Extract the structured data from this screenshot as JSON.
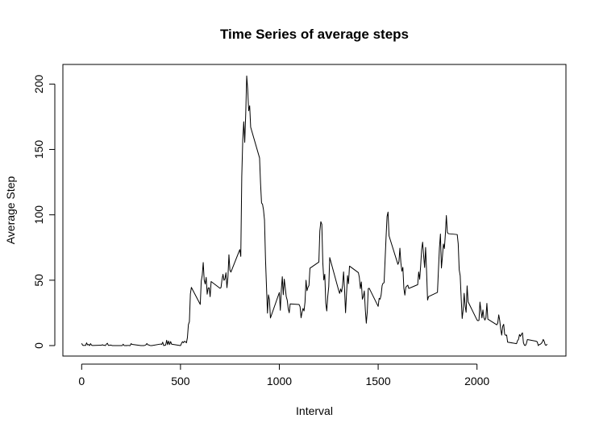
{
  "chart_data": {
    "type": "line",
    "title": "Time Series of average steps",
    "xlabel": "Interval",
    "ylabel": "Average Step",
    "xlim": [
      -95,
      2450
    ],
    "ylim": [
      -8,
      215
    ],
    "xticks": [
      0,
      500,
      1000,
      1500,
      2000
    ],
    "yticks": [
      0,
      50,
      100,
      150,
      200
    ],
    "grid": false,
    "series": [
      {
        "points": [
          [
            0,
            1.7
          ],
          [
            5,
            0.3
          ],
          [
            10,
            0.1
          ],
          [
            15,
            0.2
          ],
          [
            20,
            0.1
          ],
          [
            25,
            2.1
          ],
          [
            30,
            0.5
          ],
          [
            35,
            0.9
          ],
          [
            40,
            0
          ],
          [
            45,
            1.5
          ],
          [
            50,
            0.3
          ],
          [
            55,
            0.1
          ],
          [
            100,
            0.3
          ],
          [
            105,
            0.7
          ],
          [
            110,
            0.2
          ],
          [
            115,
            0.3
          ],
          [
            120,
            0
          ],
          [
            125,
            1.1
          ],
          [
            130,
            1.8
          ],
          [
            135,
            0.2
          ],
          [
            140,
            0.2
          ],
          [
            145,
            0.4
          ],
          [
            150,
            0.3
          ],
          [
            155,
            0
          ],
          [
            200,
            0
          ],
          [
            205,
            0
          ],
          [
            210,
            1.1
          ],
          [
            215,
            0
          ],
          [
            220,
            0
          ],
          [
            225,
            0.1
          ],
          [
            230,
            0
          ],
          [
            235,
            0.2
          ],
          [
            240,
            0
          ],
          [
            245,
            0
          ],
          [
            250,
            1.5
          ],
          [
            255,
            0.9
          ],
          [
            300,
            0
          ],
          [
            305,
            0
          ],
          [
            310,
            0
          ],
          [
            315,
            0
          ],
          [
            320,
            0.2
          ],
          [
            325,
            0.6
          ],
          [
            330,
            1.6
          ],
          [
            335,
            0.6
          ],
          [
            340,
            0.5
          ],
          [
            345,
            0.1
          ],
          [
            350,
            0
          ],
          [
            355,
            0
          ],
          [
            400,
            1.2
          ],
          [
            405,
            0.9
          ],
          [
            410,
            2.6
          ],
          [
            415,
            0
          ],
          [
            420,
            0.3
          ],
          [
            425,
            0.4
          ],
          [
            430,
            4.1
          ],
          [
            435,
            0.7
          ],
          [
            440,
            3.5
          ],
          [
            445,
            0.8
          ],
          [
            450,
            3.1
          ],
          [
            455,
            1.1
          ],
          [
            500,
            0
          ],
          [
            505,
            1.6
          ],
          [
            510,
            3
          ],
          [
            515,
            2.2
          ],
          [
            520,
            3.3
          ],
          [
            525,
            3
          ],
          [
            530,
            2.1
          ],
          [
            535,
            6.1
          ],
          [
            540,
            16
          ],
          [
            545,
            18.3
          ],
          [
            550,
            39.5
          ],
          [
            555,
            44.5
          ],
          [
            600,
            31.5
          ],
          [
            605,
            49.3
          ],
          [
            610,
            53.8
          ],
          [
            615,
            63.5
          ],
          [
            620,
            50
          ],
          [
            625,
            47.1
          ],
          [
            630,
            52.2
          ],
          [
            635,
            39.3
          ],
          [
            640,
            44
          ],
          [
            645,
            44.2
          ],
          [
            650,
            37.4
          ],
          [
            655,
            49
          ],
          [
            700,
            43.8
          ],
          [
            705,
            44.4
          ],
          [
            710,
            50.5
          ],
          [
            715,
            54.5
          ],
          [
            720,
            49.9
          ],
          [
            725,
            51
          ],
          [
            730,
            55.7
          ],
          [
            735,
            44.3
          ],
          [
            740,
            52.3
          ],
          [
            745,
            69.5
          ],
          [
            750,
            57.8
          ],
          [
            755,
            56.2
          ],
          [
            800,
            73.4
          ],
          [
            805,
            68.2
          ],
          [
            810,
            129.4
          ],
          [
            815,
            157.5
          ],
          [
            820,
            171.2
          ],
          [
            825,
            155.4
          ],
          [
            830,
            177.3
          ],
          [
            835,
            206.2
          ],
          [
            840,
            195.9
          ],
          [
            845,
            179.6
          ],
          [
            850,
            183.4
          ],
          [
            855,
            167
          ],
          [
            900,
            143.5
          ],
          [
            905,
            124
          ],
          [
            910,
            109.1
          ],
          [
            915,
            108.1
          ],
          [
            920,
            103.7
          ],
          [
            925,
            95.9
          ],
          [
            930,
            66.2
          ],
          [
            935,
            45.2
          ],
          [
            940,
            24.8
          ],
          [
            945,
            38.8
          ],
          [
            950,
            35
          ],
          [
            955,
            21.1
          ],
          [
            1000,
            40.6
          ],
          [
            1005,
            27
          ],
          [
            1010,
            42.4
          ],
          [
            1015,
            52.7
          ],
          [
            1020,
            38.9
          ],
          [
            1025,
            50.8
          ],
          [
            1030,
            44.3
          ],
          [
            1035,
            37.4
          ],
          [
            1040,
            34.7
          ],
          [
            1045,
            28.3
          ],
          [
            1050,
            25.1
          ],
          [
            1055,
            31.9
          ],
          [
            1100,
            31.4
          ],
          [
            1105,
            29.7
          ],
          [
            1110,
            21.3
          ],
          [
            1115,
            25.5
          ],
          [
            1120,
            28.4
          ],
          [
            1125,
            26.5
          ],
          [
            1130,
            33.4
          ],
          [
            1135,
            49.98
          ],
          [
            1140,
            42
          ],
          [
            1145,
            44.6
          ],
          [
            1150,
            46
          ],
          [
            1155,
            59.2
          ],
          [
            1200,
            63.9
          ],
          [
            1205,
            87.7
          ],
          [
            1210,
            94.8
          ],
          [
            1215,
            92.8
          ],
          [
            1220,
            63.4
          ],
          [
            1225,
            50.2
          ],
          [
            1230,
            54.5
          ],
          [
            1235,
            32.4
          ],
          [
            1240,
            26.5
          ],
          [
            1245,
            37.7
          ],
          [
            1250,
            45.1
          ],
          [
            1255,
            67.3
          ],
          [
            1300,
            42.3
          ],
          [
            1305,
            39.9
          ],
          [
            1310,
            43.3
          ],
          [
            1315,
            40.98
          ],
          [
            1320,
            46.2
          ],
          [
            1325,
            56.4
          ],
          [
            1330,
            42.8
          ],
          [
            1335,
            25.1
          ],
          [
            1340,
            39.97
          ],
          [
            1345,
            53.5
          ],
          [
            1350,
            47.3
          ],
          [
            1355,
            60.8
          ],
          [
            1400,
            55.8
          ],
          [
            1405,
            51.96
          ],
          [
            1410,
            43.6
          ],
          [
            1415,
            48.7
          ],
          [
            1420,
            35.5
          ],
          [
            1425,
            37.5
          ],
          [
            1430,
            41.8
          ],
          [
            1435,
            27.5
          ],
          [
            1440,
            17.1
          ],
          [
            1445,
            26.1
          ],
          [
            1450,
            43.6
          ],
          [
            1455,
            43.8
          ],
          [
            1500,
            30
          ],
          [
            1505,
            36.1
          ],
          [
            1510,
            35.5
          ],
          [
            1515,
            38.8
          ],
          [
            1520,
            45.96
          ],
          [
            1525,
            47.8
          ],
          [
            1530,
            48.1
          ],
          [
            1535,
            65.3
          ],
          [
            1540,
            82.9
          ],
          [
            1545,
            98.7
          ],
          [
            1550,
            102.1
          ],
          [
            1555,
            83.96
          ],
          [
            1600,
            62.1
          ],
          [
            1605,
            64.1
          ],
          [
            1610,
            74.5
          ],
          [
            1615,
            63.2
          ],
          [
            1620,
            56.9
          ],
          [
            1625,
            59.8
          ],
          [
            1630,
            43.9
          ],
          [
            1635,
            38.6
          ],
          [
            1640,
            44.7
          ],
          [
            1645,
            45.5
          ],
          [
            1650,
            46.2
          ],
          [
            1655,
            43.7
          ],
          [
            1700,
            46.6
          ],
          [
            1705,
            56.3
          ],
          [
            1710,
            50.7
          ],
          [
            1715,
            61.2
          ],
          [
            1720,
            73.4
          ],
          [
            1725,
            79.1
          ],
          [
            1730,
            68.9
          ],
          [
            1735,
            59.7
          ],
          [
            1740,
            75.1
          ],
          [
            1745,
            56.5
          ],
          [
            1750,
            34.8
          ],
          [
            1755,
            37.5
          ],
          [
            1800,
            40.7
          ],
          [
            1805,
            58
          ],
          [
            1810,
            74.7
          ],
          [
            1815,
            85.3
          ],
          [
            1820,
            59.3
          ],
          [
            1825,
            67.8
          ],
          [
            1830,
            77.7
          ],
          [
            1835,
            74.2
          ],
          [
            1840,
            85.3
          ],
          [
            1845,
            99.5
          ],
          [
            1850,
            86.6
          ],
          [
            1855,
            85.6
          ],
          [
            1900,
            84.9
          ],
          [
            1905,
            77.8
          ],
          [
            1910,
            58
          ],
          [
            1915,
            53.4
          ],
          [
            1920,
            36.3
          ],
          [
            1925,
            20.7
          ],
          [
            1930,
            27.4
          ],
          [
            1935,
            40
          ],
          [
            1940,
            30.2
          ],
          [
            1945,
            25.5
          ],
          [
            1950,
            45.7
          ],
          [
            1955,
            33.5
          ],
          [
            2000,
            19.6
          ],
          [
            2005,
            19
          ],
          [
            2010,
            19.3
          ],
          [
            2015,
            33.3
          ],
          [
            2020,
            26.8
          ],
          [
            2025,
            21.2
          ],
          [
            2030,
            27.3
          ],
          [
            2035,
            21.3
          ],
          [
            2040,
            19.5
          ],
          [
            2045,
            21.3
          ],
          [
            2050,
            32.3
          ],
          [
            2055,
            20.2
          ],
          [
            2100,
            15.9
          ],
          [
            2105,
            17.2
          ],
          [
            2110,
            23.5
          ],
          [
            2115,
            19.2
          ],
          [
            2120,
            12.5
          ],
          [
            2125,
            8
          ],
          [
            2130,
            14.7
          ],
          [
            2135,
            16.3
          ],
          [
            2140,
            8.7
          ],
          [
            2145,
            7.8
          ],
          [
            2150,
            8.1
          ],
          [
            2155,
            2.6
          ],
          [
            2200,
            1.5
          ],
          [
            2205,
            3.7
          ],
          [
            2210,
            4.8
          ],
          [
            2215,
            8.5
          ],
          [
            2220,
            7.1
          ],
          [
            2225,
            8.7
          ],
          [
            2230,
            9.8
          ],
          [
            2235,
            2.2
          ],
          [
            2240,
            0.3
          ],
          [
            2245,
            0.1
          ],
          [
            2250,
            1.6
          ],
          [
            2255,
            4.6
          ],
          [
            2300,
            3.3
          ],
          [
            2305,
            2.8
          ],
          [
            2310,
            0
          ],
          [
            2315,
            0.8
          ],
          [
            2320,
            1
          ],
          [
            2325,
            1.6
          ],
          [
            2330,
            2.6
          ],
          [
            2335,
            4.7
          ],
          [
            2340,
            3.3
          ],
          [
            2345,
            0.6
          ],
          [
            2350,
            0.2
          ],
          [
            2355,
            1.1
          ]
        ]
      }
    ]
  }
}
